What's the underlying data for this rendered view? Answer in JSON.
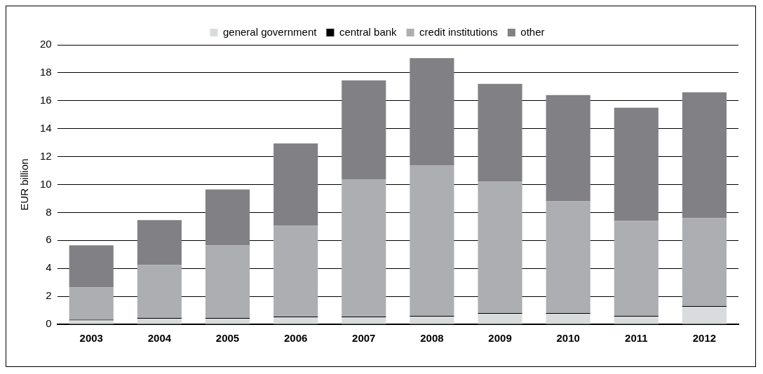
{
  "chart_data": {
    "type": "bar",
    "ylabel": "EUR billion",
    "categories": [
      "2003",
      "2004",
      "2005",
      "2006",
      "2007",
      "2008",
      "2009",
      "2010",
      "2011",
      "2012"
    ],
    "stacked": true,
    "series": [
      {
        "name": "general government",
        "color": "#d9dcdc",
        "values": [
          0.28,
          0.4,
          0.4,
          0.5,
          0.5,
          0.55,
          0.75,
          0.75,
          0.55,
          1.25
        ]
      },
      {
        "name": "central bank",
        "color": "#000000",
        "values": [
          0.05,
          0.05,
          0.05,
          0.05,
          0.05,
          0.05,
          0.05,
          0.05,
          0.05,
          0.05
        ]
      },
      {
        "name": "credit institutions",
        "color": "#adaeb1",
        "values": [
          2.32,
          3.8,
          5.2,
          6.5,
          9.8,
          10.75,
          9.4,
          8.0,
          6.8,
          6.3
        ]
      },
      {
        "name": "other",
        "color": "#818085",
        "values": [
          3.0,
          3.2,
          4.0,
          5.9,
          7.1,
          7.7,
          7.0,
          7.6,
          8.1,
          9.0
        ]
      }
    ],
    "ylim": [
      0,
      20
    ],
    "yticks": [
      0,
      2,
      4,
      6,
      8,
      10,
      12,
      14,
      16,
      18,
      20
    ],
    "grid": "y",
    "legend": "top"
  }
}
